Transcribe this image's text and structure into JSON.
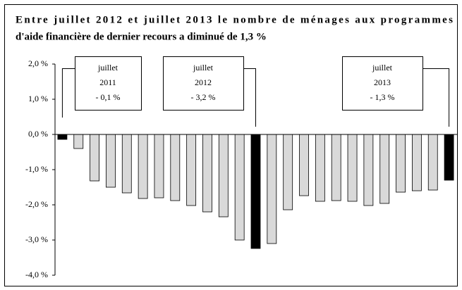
{
  "chart_data": {
    "type": "bar",
    "title": [
      "Entre juillet 2012 et juillet 2013 le nombre de ménages aux programmes",
      "d'aide financière de dernier recours a diminué de 1,3 %"
    ],
    "categories": [
      null,
      null,
      null,
      null,
      null,
      null,
      null,
      null,
      null,
      null,
      null,
      null,
      null,
      null,
      null,
      null,
      null,
      null,
      null,
      null,
      null,
      null,
      null,
      null,
      null
    ],
    "values": [
      -0.14,
      -0.4,
      -1.32,
      -1.5,
      -1.66,
      -1.82,
      -1.8,
      -1.88,
      -2.02,
      -2.2,
      -2.34,
      -3.0,
      -3.24,
      -3.1,
      -2.14,
      -1.74,
      -1.9,
      -1.88,
      -1.9,
      -2.02,
      -1.96,
      -1.64,
      -1.6,
      -1.58,
      -1.3
    ],
    "colors": [
      "#000000",
      "#d9d9d9",
      "#d9d9d9",
      "#d9d9d9",
      "#d9d9d9",
      "#d9d9d9",
      "#d9d9d9",
      "#d9d9d9",
      "#d9d9d9",
      "#d9d9d9",
      "#d9d9d9",
      "#d9d9d9",
      "#000000",
      "#d9d9d9",
      "#d9d9d9",
      "#d9d9d9",
      "#d9d9d9",
      "#d9d9d9",
      "#d9d9d9",
      "#d9d9d9",
      "#d9d9d9",
      "#d9d9d9",
      "#d9d9d9",
      "#d9d9d9",
      "#000000"
    ],
    "ylim": [
      -4,
      2
    ],
    "yticks": [
      {
        "value": 2,
        "label": "2,0 %"
      },
      {
        "value": 1,
        "label": "1,0 %"
      },
      {
        "value": 0,
        "label": "0,0 %"
      },
      {
        "value": -1,
        "label": "-1,0 %"
      },
      {
        "value": -2,
        "label": "-2,0 %"
      },
      {
        "value": -3,
        "label": "-3,0 %"
      },
      {
        "value": -4,
        "label": "-4,0 %"
      }
    ],
    "annotations": [
      [
        "juillet",
        "2011",
        "- 0,1 %"
      ],
      [
        "juillet",
        "2012",
        "- 3,2 %"
      ],
      [
        "juillet",
        "2013",
        "- 1,3 %"
      ]
    ]
  }
}
